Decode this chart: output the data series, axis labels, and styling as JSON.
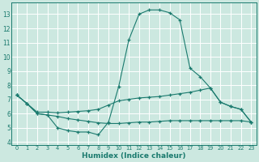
{
  "xlabel": "Humidex (Indice chaleur)",
  "bg_color": "#cce8e0",
  "line_color": "#1a7a6e",
  "grid_color": "#ffffff",
  "xlim": [
    -0.5,
    23.5
  ],
  "ylim": [
    3.8,
    13.8
  ],
  "yticks": [
    4,
    5,
    6,
    7,
    8,
    9,
    10,
    11,
    12,
    13
  ],
  "xticks": [
    0,
    1,
    2,
    3,
    4,
    5,
    6,
    7,
    8,
    9,
    10,
    11,
    12,
    13,
    14,
    15,
    16,
    17,
    18,
    19,
    20,
    21,
    22,
    23
  ],
  "line1_x": [
    0,
    1,
    2,
    3,
    4,
    5,
    6,
    7,
    8,
    9,
    10,
    11,
    12,
    13,
    14,
    15,
    16,
    17,
    18,
    19,
    20,
    21,
    22,
    23
  ],
  "line1_y": [
    7.3,
    6.7,
    6.0,
    5.9,
    5.0,
    4.8,
    4.7,
    4.7,
    4.5,
    5.4,
    7.9,
    11.2,
    13.0,
    13.3,
    13.3,
    13.1,
    12.6,
    9.2,
    8.6,
    7.8,
    6.8,
    6.5,
    6.3,
    5.4
  ],
  "line2_x": [
    0,
    1,
    2,
    3,
    4,
    5,
    6,
    7,
    8,
    9,
    10,
    11,
    12,
    13,
    14,
    15,
    16,
    17,
    18,
    19,
    20,
    21,
    22,
    23
  ],
  "line2_y": [
    7.3,
    6.7,
    6.1,
    6.1,
    6.05,
    6.1,
    6.15,
    6.2,
    6.3,
    6.6,
    6.9,
    7.0,
    7.1,
    7.15,
    7.2,
    7.3,
    7.4,
    7.5,
    7.65,
    7.8,
    6.8,
    6.5,
    6.3,
    5.4
  ],
  "line3_x": [
    0,
    1,
    2,
    3,
    4,
    5,
    6,
    7,
    8,
    9,
    10,
    11,
    12,
    13,
    14,
    15,
    16,
    17,
    18,
    19,
    20,
    21,
    22,
    23
  ],
  "line3_y": [
    7.3,
    6.7,
    6.0,
    5.9,
    5.8,
    5.65,
    5.55,
    5.45,
    5.35,
    5.3,
    5.3,
    5.35,
    5.4,
    5.4,
    5.45,
    5.5,
    5.5,
    5.5,
    5.5,
    5.5,
    5.5,
    5.5,
    5.5,
    5.4
  ]
}
